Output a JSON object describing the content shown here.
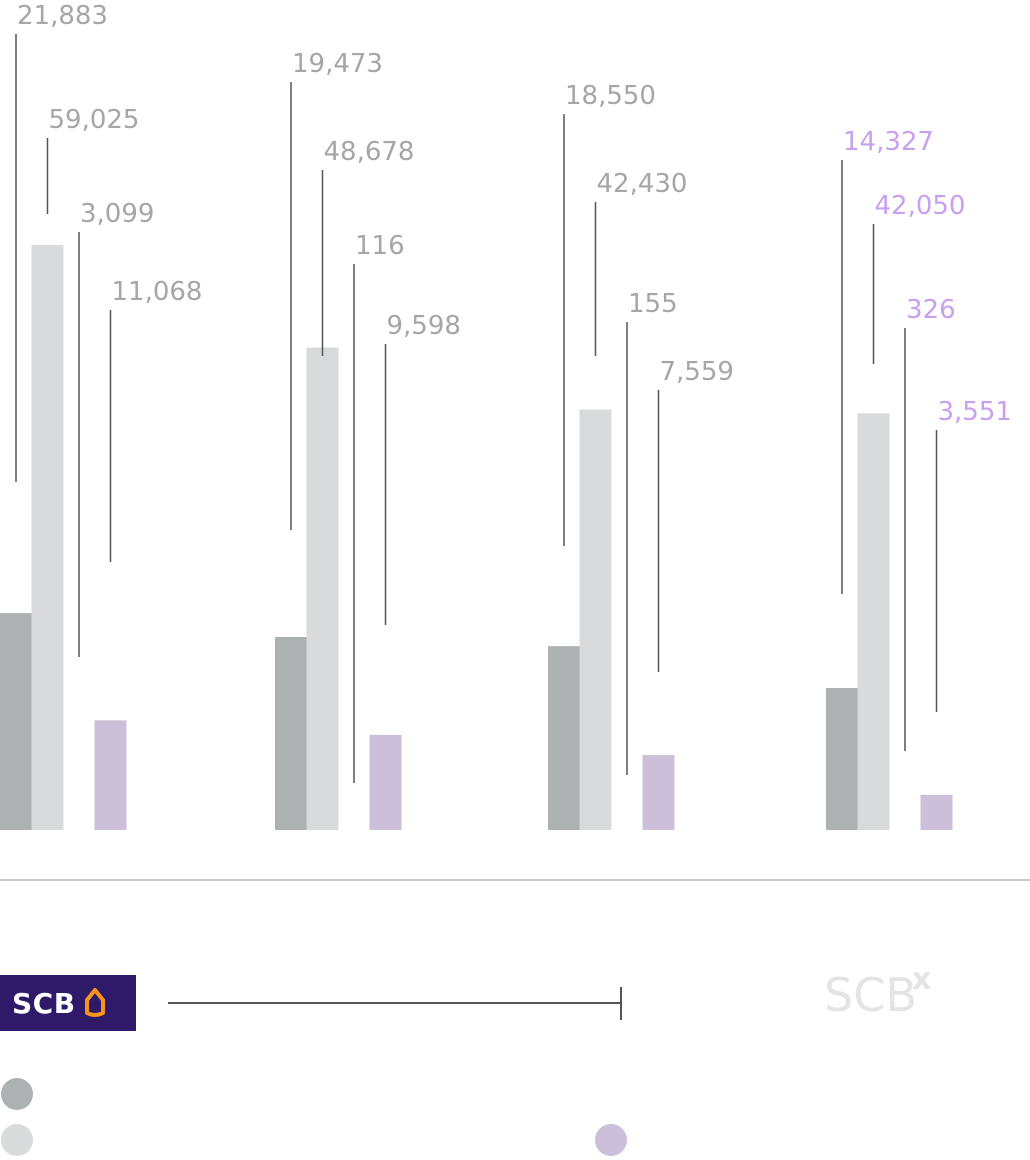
{
  "chart_data": {
    "type": "bar",
    "categories": [
      "",
      "",
      "",
      ""
    ],
    "series": [
      {
        "values": [
          21883,
          19473,
          18550,
          14327
        ],
        "color": "#adb1b1"
      },
      {
        "values": [
          59025,
          48678,
          42430,
          42050
        ],
        "color": "#d8dadb"
      },
      {
        "values": [
          3099,
          116,
          155,
          326
        ],
        "color": "#ffffff"
      },
      {
        "values": [
          11068,
          9598,
          7559,
          3551
        ],
        "color": "#cbbfd9"
      }
    ],
    "value_labels": [
      [
        "21,883",
        "59,025",
        "3,099",
        "11,068"
      ],
      [
        "19,473",
        "48,678",
        "116",
        "9,598"
      ],
      [
        "18,550",
        "42,430",
        "155",
        "7,559"
      ],
      [
        "14,327",
        "42,050",
        "326",
        "3,551"
      ]
    ],
    "label_colors": {
      "default": "#a6a6a6",
      "highlight": "#c9a0f0"
    },
    "highlight_group_index": 3,
    "title": "",
    "xlabel": "",
    "ylabel": "",
    "grid": false
  },
  "brand": {
    "logo_text": "SCB",
    "logo2_text": "SCB",
    "logo2_sup": "x",
    "logo_bg": "#2e1a68",
    "logo_accent": "#f7941d"
  },
  "legend": [
    {
      "color": "#adb1b1"
    },
    {
      "color": "#d8dadb"
    },
    {
      "color": "#cbbfd9"
    }
  ]
}
